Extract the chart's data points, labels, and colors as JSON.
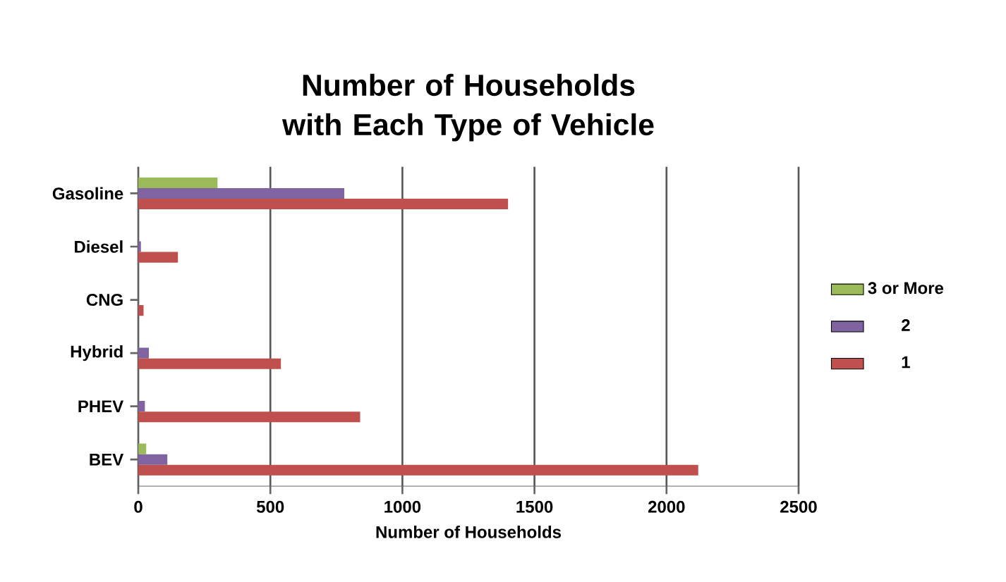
{
  "chart_data": {
    "type": "bar",
    "orientation": "horizontal",
    "title": "Number of Households with Each Type of Vehicle",
    "xlabel": "Number of Households",
    "categories": [
      "Gasoline",
      "Diesel",
      "CNG",
      "Hybrid",
      "PHEV",
      "BEV"
    ],
    "series": [
      {
        "name": "3 or More",
        "color": "#9bbb59",
        "values": [
          300,
          0,
          0,
          0,
          0,
          30
        ]
      },
      {
        "name": "2",
        "color": "#8064a2",
        "values": [
          780,
          10,
          0,
          40,
          25,
          110
        ]
      },
      {
        "name": "1",
        "color": "#c0504d",
        "values": [
          1400,
          150,
          20,
          540,
          840,
          2120
        ]
      }
    ],
    "xlim": [
      0,
      2500
    ],
    "xticks": [
      0,
      500,
      1000,
      1500,
      2000,
      2500
    ],
    "grid": "x",
    "legend": "right"
  }
}
